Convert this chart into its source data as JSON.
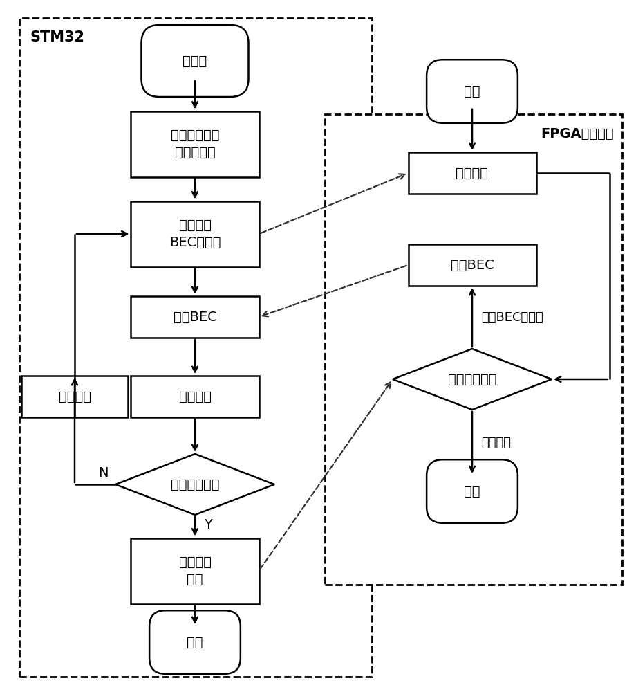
{
  "bg_color": "#ffffff",
  "stm32_label": "STM32",
  "fpga_label": "FPGA串口部分",
  "font_size": 14,
  "nodes": {
    "init": {
      "text": "初始化",
      "shape": "stadium"
    },
    "get_params": {
      "text": "获取初始点的\n延时、衰减",
      "shape": "rect"
    },
    "send_req": {
      "text": "发送请求\nBEC的指令",
      "shape": "rect"
    },
    "recv_bec": {
      "text": "接收BEC",
      "shape": "rect"
    },
    "exec_alg_c": {
      "text": "执行算法",
      "shape": "rect"
    },
    "exec_alg_l": {
      "text": "执行算法",
      "shape": "rect"
    },
    "condition": {
      "text": "满足停止条件",
      "shape": "diamond"
    },
    "send_end": {
      "text": "发送结束\n指令",
      "shape": "rect"
    },
    "end_stm": {
      "text": "结束",
      "shape": "stadium"
    },
    "fpga_start": {
      "text": "开始",
      "shape": "stadium"
    },
    "recv_cmd": {
      "text": "接收指令",
      "shape": "rect"
    },
    "send_bec": {
      "text": "发送BEC",
      "shape": "rect"
    },
    "judge": {
      "text": "判断指令类型",
      "shape": "diamond"
    },
    "end_fpga": {
      "text": "结束",
      "shape": "stadium"
    }
  },
  "labels": {
    "N": "N",
    "Y": "Y",
    "req_bec_label": "请求BEC的指令",
    "end_cmd_label": "结束指令"
  }
}
